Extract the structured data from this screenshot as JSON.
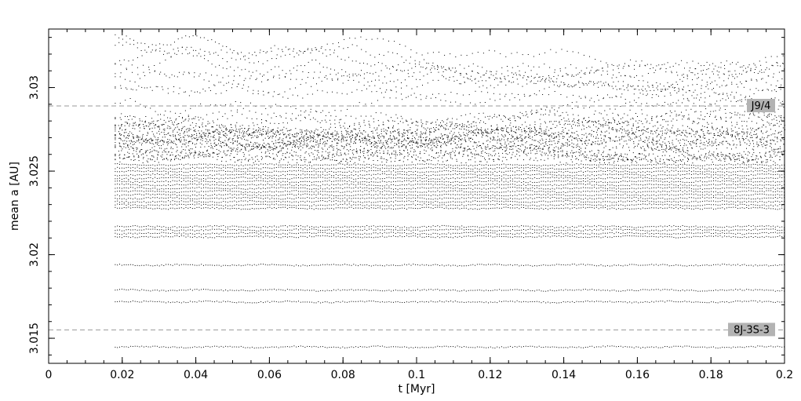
{
  "chart_data": {
    "type": "scatter",
    "xlabel": "t [Myr]",
    "ylabel": "mean a [AU]",
    "xlim": [
      0,
      0.2
    ],
    "ylim": [
      3.0135,
      3.0335
    ],
    "x_ticks": [
      0,
      0.02,
      0.04,
      0.06,
      0.08,
      0.1,
      0.12,
      0.14,
      0.16,
      0.18,
      0.2
    ],
    "x_tick_labels": [
      "0",
      "0.02",
      "0.04",
      "0.06",
      "0.08",
      "0.1",
      "0.12",
      "0.14",
      "0.16",
      "0.18",
      "0.2"
    ],
    "y_ticks": [
      3.015,
      3.02,
      3.025,
      3.03
    ],
    "y_tick_labels": [
      "3.015",
      "3.02",
      "3.025",
      "3.03"
    ],
    "grid": false,
    "legend": "none",
    "point_color": "#000000",
    "resonances": [
      {
        "label": "J9/4",
        "a": 3.0289,
        "style": "dashed",
        "color": "#999999",
        "label_bg": "#b3b3b3"
      },
      {
        "label": "8J-3S-3",
        "a": 3.0155,
        "style": "dashed",
        "color": "#999999",
        "label_bg": "#b3b3b3"
      }
    ],
    "series_time_range": [
      0.018,
      0.2
    ],
    "stable_orbits_a": [
      3.0145,
      3.0172,
      3.0179,
      3.0194,
      3.0211,
      3.0213,
      3.0215,
      3.0217,
      3.0228,
      3.023,
      3.0232,
      3.0234,
      3.0236,
      3.0238,
      3.024,
      3.0242,
      3.0244,
      3.0246,
      3.0248,
      3.025,
      3.0252,
      3.0254
    ],
    "chaotic_orbits_a_range": [
      3.0255,
      3.0332
    ]
  }
}
